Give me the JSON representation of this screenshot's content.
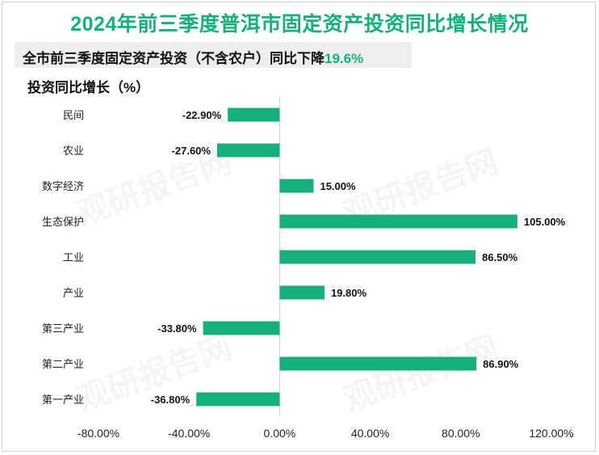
{
  "title": "2024年前三季度普洱市固定资产投资同比增长情况",
  "subtitle": {
    "text": "全市前三季度固定资产投资（不含农户）同比下降",
    "value": "19.6%"
  },
  "watermark": "观研报告网",
  "colors": {
    "bar": "#16b07a",
    "title": "#16b07a"
  },
  "chart_data": {
    "type": "bar",
    "orientation": "horizontal",
    "title": "2024年前三季度普洱市固定资产投资同比增长情况",
    "ylabel": "投资同比增长（%）",
    "categories": [
      "民间",
      "农业",
      "数字经济",
      "生态保护",
      "工业",
      "产业",
      "第三产业",
      "第二产业",
      "第一产业"
    ],
    "values": [
      -22.9,
      -27.6,
      15.0,
      105.0,
      86.5,
      19.8,
      -33.8,
      86.9,
      -36.8
    ],
    "value_labels": [
      "-22.90%",
      "-27.60%",
      "15.00%",
      "105.00%",
      "86.50%",
      "19.80%",
      "-33.80%",
      "86.90%",
      "-36.80%"
    ],
    "xlim": [
      -80,
      120
    ],
    "xticks": [
      -80,
      -40,
      0,
      40,
      80,
      120
    ],
    "xtick_labels": [
      "-80.00%",
      "-40.00%",
      "0.00%",
      "40.00%",
      "80.00%",
      "120.00%"
    ],
    "grid": false
  }
}
